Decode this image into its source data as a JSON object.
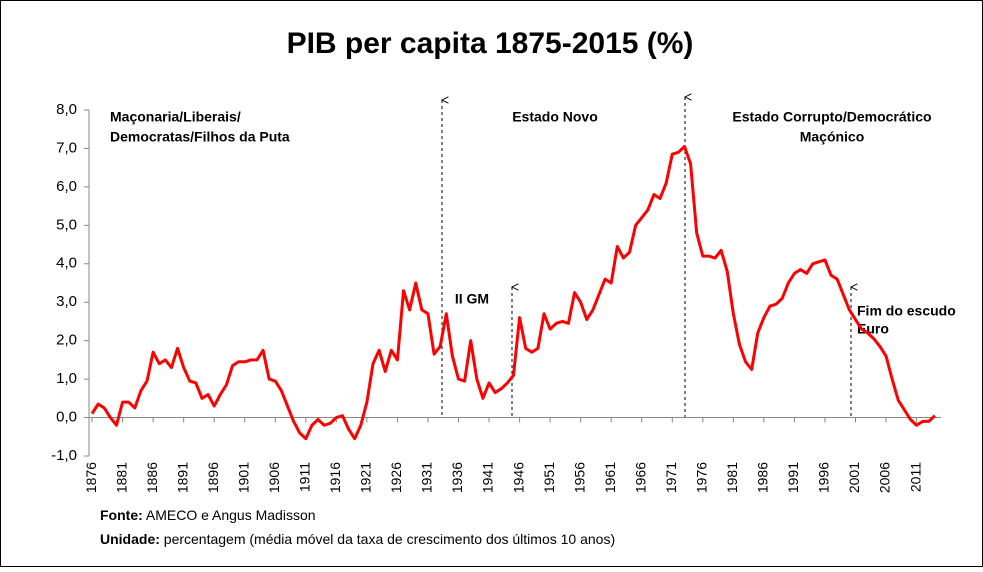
{
  "chart_data": {
    "type": "line",
    "title": "PIB per capita 1875-2015 (%)",
    "x": [
      1876,
      1877,
      1878,
      1879,
      1880,
      1881,
      1882,
      1883,
      1884,
      1885,
      1886,
      1887,
      1888,
      1889,
      1890,
      1891,
      1892,
      1893,
      1894,
      1895,
      1896,
      1897,
      1898,
      1899,
      1900,
      1901,
      1902,
      1903,
      1904,
      1905,
      1906,
      1907,
      1908,
      1909,
      1910,
      1911,
      1912,
      1913,
      1914,
      1915,
      1916,
      1917,
      1918,
      1919,
      1920,
      1921,
      1922,
      1923,
      1924,
      1925,
      1926,
      1927,
      1928,
      1929,
      1930,
      1931,
      1932,
      1933,
      1934,
      1935,
      1936,
      1937,
      1938,
      1939,
      1940,
      1941,
      1942,
      1943,
      1944,
      1945,
      1946,
      1947,
      1948,
      1949,
      1950,
      1951,
      1952,
      1953,
      1954,
      1955,
      1956,
      1957,
      1958,
      1959,
      1960,
      1961,
      1962,
      1963,
      1964,
      1965,
      1966,
      1967,
      1968,
      1969,
      1970,
      1971,
      1972,
      1973,
      1974,
      1975,
      1976,
      1977,
      1978,
      1979,
      1980,
      1981,
      1982,
      1983,
      1984,
      1985,
      1986,
      1987,
      1988,
      1989,
      1990,
      1991,
      1992,
      1993,
      1994,
      1995,
      1996,
      1997,
      1998,
      1999,
      2000,
      2001,
      2002,
      2003,
      2004,
      2005,
      2006,
      2007,
      2008,
      2009,
      2010,
      2011,
      2012,
      2013,
      2014
    ],
    "series": [
      {
        "color": "#ff0000",
        "values": [
          0.1,
          0.35,
          0.25,
          0.0,
          -0.2,
          0.4,
          0.4,
          0.25,
          0.7,
          0.95,
          1.7,
          1.4,
          1.5,
          1.3,
          1.8,
          1.3,
          0.95,
          0.9,
          0.5,
          0.6,
          0.3,
          0.6,
          0.85,
          1.35,
          1.45,
          1.45,
          1.5,
          1.5,
          1.75,
          1.0,
          0.95,
          0.7,
          0.3,
          -0.1,
          -0.4,
          -0.55,
          -0.2,
          -0.05,
          -0.2,
          -0.15,
          0.0,
          0.05,
          -0.3,
          -0.55,
          -0.2,
          0.4,
          1.4,
          1.75,
          1.2,
          1.75,
          1.5,
          3.3,
          2.8,
          3.5,
          2.8,
          2.7,
          1.65,
          1.85,
          2.7,
          1.6,
          1.0,
          0.95,
          2.0,
          1.0,
          0.5,
          0.9,
          0.65,
          0.75,
          0.9,
          1.1,
          2.6,
          1.8,
          1.7,
          1.8,
          2.7,
          2.3,
          2.45,
          2.5,
          2.45,
          3.25,
          3.0,
          2.55,
          2.8,
          3.2,
          3.6,
          3.5,
          4.45,
          4.15,
          4.3,
          5.0,
          5.2,
          5.4,
          5.8,
          5.7,
          6.1,
          6.85,
          6.9,
          7.05,
          6.6,
          4.8,
          4.2,
          4.2,
          4.15,
          4.35,
          3.8,
          2.7,
          1.9,
          1.45,
          1.25,
          2.2,
          2.6,
          2.9,
          2.95,
          3.1,
          3.5,
          3.75,
          3.85,
          3.75,
          4.0,
          4.05,
          4.1,
          3.7,
          3.6,
          3.2,
          2.8,
          2.55,
          2.3,
          2.2,
          2.05,
          1.85,
          1.6,
          1.0,
          0.45,
          0.2,
          -0.05,
          -0.2,
          -0.1,
          -0.1,
          0.05
        ]
      }
    ],
    "xlim": [
      1875.5,
      2015
    ],
    "xticks": [
      1876,
      1881,
      1886,
      1891,
      1896,
      1901,
      1906,
      1911,
      1916,
      1921,
      1926,
      1931,
      1936,
      1941,
      1946,
      1951,
      1956,
      1961,
      1966,
      1971,
      1976,
      1981,
      1986,
      1991,
      1996,
      2001,
      2006,
      2011
    ],
    "ylim": [
      -1,
      8
    ],
    "yticks": [
      {
        "value": -1,
        "label": "-1,0"
      },
      {
        "value": 0,
        "label": "0,0"
      },
      {
        "value": 1,
        "label": "1,0"
      },
      {
        "value": 2,
        "label": "2,0"
      },
      {
        "value": 3,
        "label": "3,0"
      },
      {
        "value": 4,
        "label": "4,0"
      },
      {
        "value": 5,
        "label": "5,0"
      },
      {
        "value": 6,
        "label": "6,0"
      },
      {
        "value": 7,
        "label": "7,0"
      },
      {
        "value": 8,
        "label": "8,0"
      }
    ],
    "grid": false,
    "annotations": [
      {
        "lines": [
          "Maçonaria/Liberais/",
          "Democratas/Filhos da Puta"
        ]
      },
      {
        "lines": [
          "Estado Novo"
        ]
      },
      {
        "lines": [
          "II GM"
        ]
      },
      {
        "lines": [
          "Estado Corrupto/Democrático",
          "Maçónico"
        ]
      },
      {
        "lines": [
          "Fim do escudo",
          "Euro"
        ]
      }
    ],
    "notes": [
      {
        "label": "Fonte:",
        "text": "AMECO e Angus Madisson"
      },
      {
        "label": "Unidade:",
        "text": "percentagem (média móvel da taxa de crescimento dos últimos 10 anos)"
      }
    ]
  }
}
